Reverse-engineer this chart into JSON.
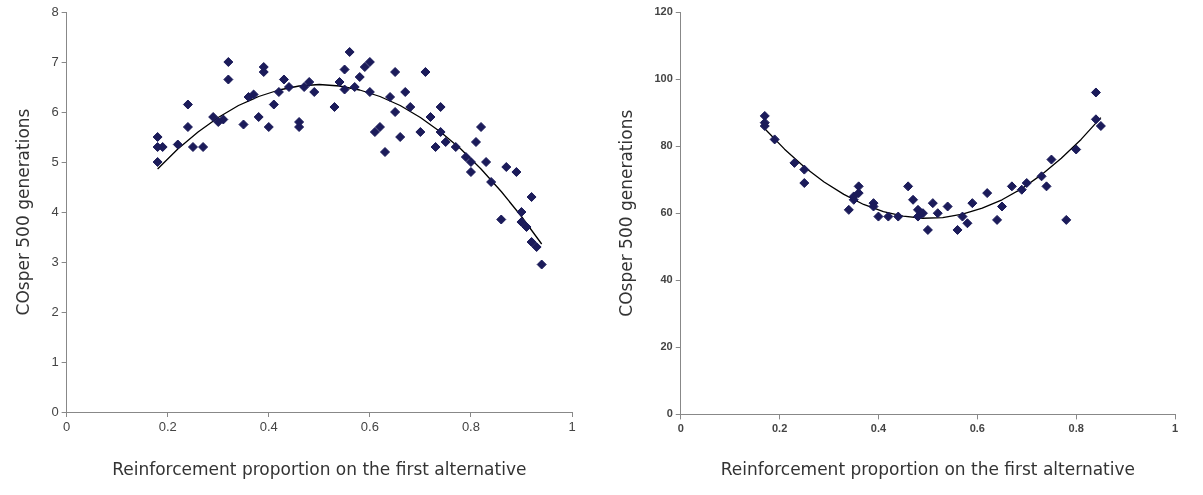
{
  "chart_data": [
    {
      "type": "scatter",
      "xlabel": "Reinforcement proportion on the first alternative",
      "ylabel": "COsper 500 generations",
      "xlim": [
        0,
        1
      ],
      "xticks": [
        0,
        0.2,
        0.4,
        0.6,
        0.8,
        1
      ],
      "ylim": [
        0,
        8
      ],
      "yticks": [
        0,
        1,
        2,
        3,
        4,
        5,
        6,
        7,
        8
      ],
      "grid": false,
      "legend": false,
      "series": [
        {
          "marker": "diamond",
          "color": "#1b1b5a",
          "x": [
            0.18,
            0.18,
            0.18,
            0.19,
            0.22,
            0.24,
            0.24,
            0.25,
            0.27,
            0.29,
            0.3,
            0.31,
            0.32,
            0.32,
            0.35,
            0.36,
            0.37,
            0.38,
            0.39,
            0.39,
            0.4,
            0.41,
            0.42,
            0.43,
            0.44,
            0.46,
            0.46,
            0.47,
            0.48,
            0.49,
            0.53,
            0.54,
            0.55,
            0.55,
            0.56,
            0.57,
            0.58,
            0.59,
            0.6,
            0.6,
            0.61,
            0.62,
            0.63,
            0.64,
            0.65,
            0.65,
            0.66,
            0.67,
            0.68,
            0.7,
            0.71,
            0.72,
            0.73,
            0.74,
            0.74,
            0.75,
            0.77,
            0.79,
            0.8,
            0.8,
            0.81,
            0.82,
            0.83,
            0.84,
            0.86,
            0.87,
            0.89,
            0.9,
            0.9,
            0.91,
            0.92,
            0.92,
            0.93,
            0.94
          ],
          "values": [
            5.5,
            5.3,
            5.0,
            5.3,
            5.35,
            6.15,
            5.7,
            5.3,
            5.3,
            5.9,
            5.8,
            5.85,
            7.0,
            6.65,
            5.75,
            6.3,
            6.35,
            5.9,
            6.8,
            6.9,
            5.7,
            6.15,
            6.4,
            6.65,
            6.5,
            5.7,
            5.8,
            6.5,
            6.6,
            6.4,
            6.1,
            6.6,
            6.85,
            6.45,
            7.2,
            6.5,
            6.7,
            6.9,
            7.0,
            6.4,
            5.6,
            5.7,
            5.2,
            6.3,
            6.0,
            6.8,
            5.5,
            6.4,
            6.1,
            5.6,
            6.8,
            5.9,
            5.3,
            5.6,
            6.1,
            5.4,
            5.3,
            5.1,
            4.8,
            5.0,
            5.4,
            5.7,
            5.0,
            4.6,
            3.85,
            4.9,
            4.8,
            4.0,
            3.8,
            3.7,
            3.4,
            4.3,
            3.3,
            2.95
          ]
        },
        {
          "type": "line",
          "marker": "none",
          "color": "#000000",
          "x": [
            0.18,
            0.22,
            0.26,
            0.3,
            0.34,
            0.38,
            0.42,
            0.46,
            0.5,
            0.54,
            0.58,
            0.62,
            0.66,
            0.7,
            0.74,
            0.78,
            0.82,
            0.86,
            0.9,
            0.94
          ],
          "values": [
            4.86,
            5.26,
            5.6,
            5.89,
            6.13,
            6.31,
            6.44,
            6.52,
            6.55,
            6.52,
            6.44,
            6.31,
            6.13,
            5.89,
            5.6,
            5.26,
            4.86,
            4.41,
            3.91,
            3.36
          ]
        }
      ]
    },
    {
      "type": "scatter",
      "xlabel": "Reinforcement proportion on the first alternative",
      "ylabel": "COsper 500 generations",
      "xlim": [
        0,
        1
      ],
      "xticks": [
        0,
        0.2,
        0.4,
        0.6,
        0.8,
        1
      ],
      "ylim": [
        0,
        120
      ],
      "yticks": [
        0,
        20,
        40,
        60,
        80,
        100,
        120
      ],
      "grid": false,
      "legend": false,
      "series": [
        {
          "marker": "diamond",
          "color": "#1b1b5a",
          "x": [
            0.17,
            0.17,
            0.17,
            0.19,
            0.23,
            0.25,
            0.25,
            0.34,
            0.35,
            0.35,
            0.36,
            0.36,
            0.39,
            0.39,
            0.4,
            0.42,
            0.44,
            0.46,
            0.47,
            0.48,
            0.48,
            0.49,
            0.5,
            0.51,
            0.52,
            0.54,
            0.56,
            0.57,
            0.58,
            0.59,
            0.62,
            0.64,
            0.65,
            0.67,
            0.69,
            0.7,
            0.73,
            0.74,
            0.75,
            0.78,
            0.8,
            0.84,
            0.84,
            0.85
          ],
          "values": [
            89,
            86,
            87,
            82,
            75,
            73,
            69,
            61,
            64,
            65,
            68,
            66,
            63,
            62,
            59,
            59,
            59,
            68,
            64,
            61,
            59,
            60,
            55,
            63,
            60,
            62,
            55,
            59,
            57,
            63,
            66,
            58,
            62,
            68,
            67,
            69,
            71,
            68,
            76,
            58,
            79,
            96,
            88,
            86
          ]
        },
        {
          "type": "line",
          "marker": "none",
          "color": "#000000",
          "x": [
            0.17,
            0.21,
            0.25,
            0.29,
            0.33,
            0.37,
            0.41,
            0.45,
            0.49,
            0.53,
            0.57,
            0.61,
            0.65,
            0.69,
            0.73,
            0.77,
            0.81,
            0.85
          ],
          "values": [
            85.2,
            79.1,
            73.8,
            69.3,
            65.6,
            62.6,
            60.5,
            59.1,
            58.5,
            58.7,
            59.7,
            61.5,
            64.0,
            67.3,
            71.5,
            76.4,
            82.0,
            88.5
          ]
        }
      ]
    }
  ]
}
